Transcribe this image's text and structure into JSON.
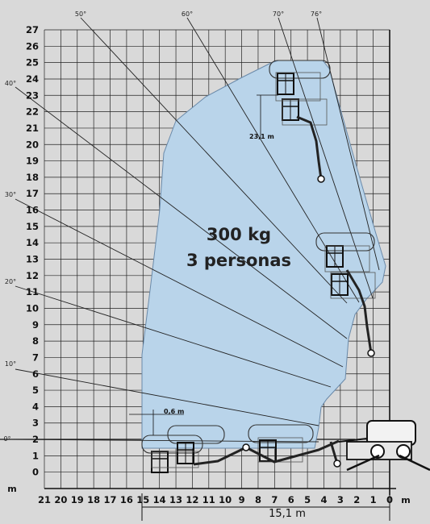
{
  "diagram": {
    "capacity_line1": "300 kg",
    "capacity_line2": "3 personas",
    "y_unit": "m",
    "x_unit": "m",
    "y_ticks": [
      "0",
      "1",
      "2",
      "3",
      "4",
      "5",
      "6",
      "7",
      "8",
      "9",
      "10",
      "11",
      "12",
      "13",
      "14",
      "15",
      "16",
      "17",
      "18",
      "19",
      "20",
      "21",
      "22",
      "23",
      "24",
      "25",
      "26",
      "27"
    ],
    "x_ticks": [
      "21",
      "20",
      "19",
      "18",
      "17",
      "16",
      "15",
      "14",
      "13",
      "12",
      "11",
      "10",
      "9",
      "8",
      "7",
      "6",
      "5",
      "4",
      "3",
      "2",
      "1",
      "0"
    ],
    "angle_labels": [
      "0°",
      "10°",
      "20°",
      "30°",
      "40°",
      "50°",
      "60°",
      "70°",
      "76°"
    ],
    "height_annotation": "23,1 m",
    "offset_annotation": "0,6 m",
    "reach_annotation": "15,1 m",
    "colors": {
      "background": "#d9d9d9",
      "envelope_fill": "#b9d4ea",
      "grid": "#1a1a1a",
      "text": "#111111"
    }
  }
}
